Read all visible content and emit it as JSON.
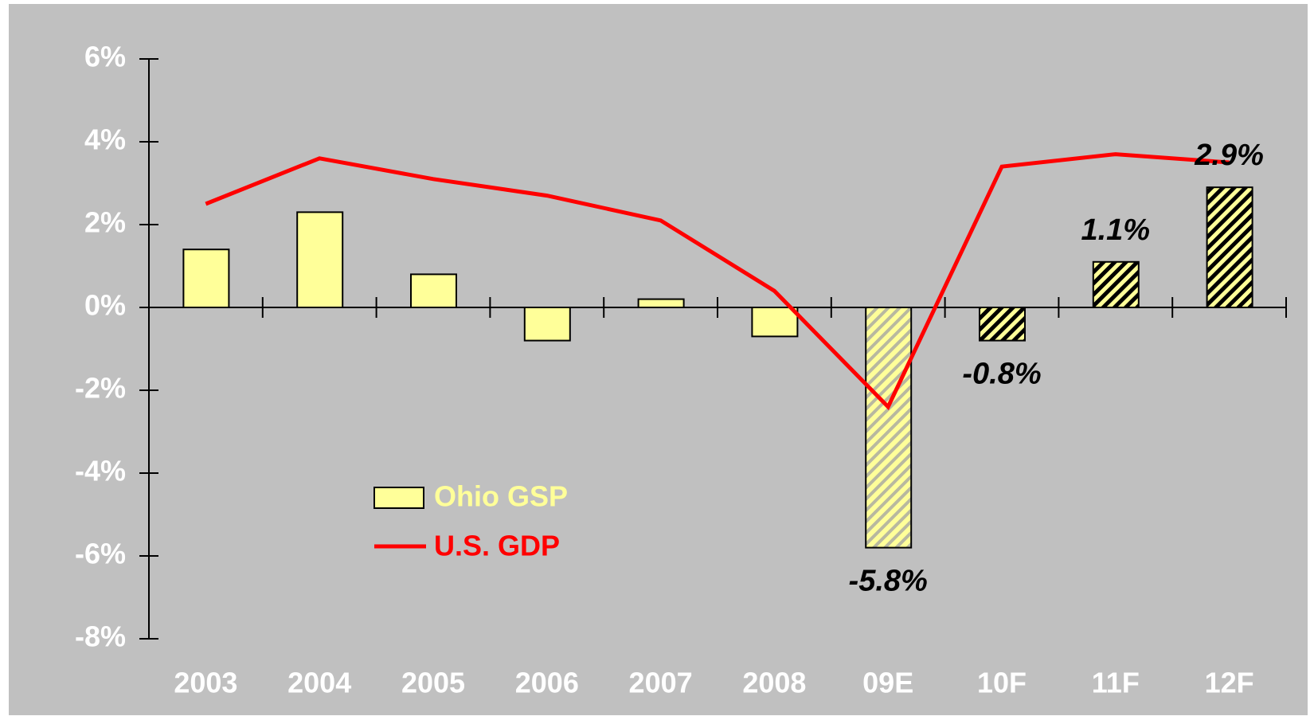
{
  "chart_data": {
    "type": "bar-line",
    "categories": [
      "2003",
      "2004",
      "2005",
      "2006",
      "2007",
      "2008",
      "09E",
      "10F",
      "11F",
      "12F"
    ],
    "series": [
      {
        "name": "Ohio GSP",
        "type": "bar",
        "color": "#ffff99",
        "values": [
          1.4,
          2.3,
          0.8,
          -0.8,
          0.2,
          -0.7,
          -5.8,
          -0.8,
          1.1,
          2.9
        ],
        "value_labels": [
          null,
          null,
          null,
          null,
          null,
          null,
          "-5.8%",
          "-0.8%",
          "1.1%",
          "2.9%"
        ],
        "patterns": [
          "solid",
          "solid",
          "solid",
          "solid",
          "solid",
          "solid",
          "light-hatch",
          "dark-hatch",
          "dark-hatch",
          "dark-hatch"
        ]
      },
      {
        "name": "U.S. GDP",
        "type": "line",
        "color": "#ff0000",
        "values": [
          2.5,
          3.6,
          3.1,
          2.7,
          2.1,
          0.4,
          -2.4,
          3.4,
          3.7,
          3.5
        ]
      }
    ],
    "ylim": [
      -8,
      6
    ],
    "yticks": [
      {
        "value": -8,
        "label": "-8%"
      },
      {
        "value": -6,
        "label": "-6%"
      },
      {
        "value": -4,
        "label": "-4%"
      },
      {
        "value": -2,
        "label": "-2%"
      },
      {
        "value": 0,
        "label": "0%"
      },
      {
        "value": 2,
        "label": "2%"
      },
      {
        "value": 4,
        "label": "4%"
      },
      {
        "value": 6,
        "label": "6%"
      }
    ],
    "background": "#c0c0c0"
  }
}
